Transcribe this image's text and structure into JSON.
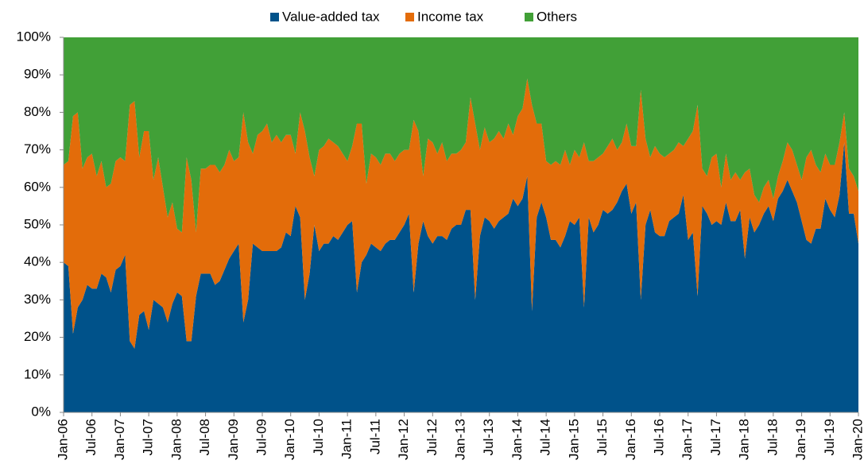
{
  "chart_data": {
    "type": "stacked_area",
    "categories": [
      "Jan-06",
      null,
      null,
      null,
      null,
      null,
      "Jul-06",
      null,
      null,
      null,
      null,
      null,
      "Jan-07",
      null,
      null,
      null,
      null,
      null,
      "Jul-07",
      null,
      null,
      null,
      null,
      null,
      "Jan-08",
      null,
      null,
      null,
      null,
      null,
      "Jul-08",
      null,
      null,
      null,
      null,
      null,
      "Jan-09",
      null,
      null,
      null,
      null,
      null,
      "Jul-09",
      null,
      null,
      null,
      null,
      null,
      "Jan-10",
      null,
      null,
      null,
      null,
      null,
      "Jul-10",
      null,
      null,
      null,
      null,
      null,
      "Jan-11",
      null,
      null,
      null,
      null,
      null,
      "Jul-11",
      null,
      null,
      null,
      null,
      null,
      "Jan-12",
      null,
      null,
      null,
      null,
      null,
      "Jul-12",
      null,
      null,
      null,
      null,
      null,
      "Jan-13",
      null,
      null,
      null,
      null,
      null,
      "Jul-13",
      null,
      null,
      null,
      null,
      null,
      "Jan-14",
      null,
      null,
      null,
      null,
      null,
      "Jul-14",
      null,
      null,
      null,
      null,
      null,
      "Jan-15",
      null,
      null,
      null,
      null,
      null,
      "Jul-15",
      null,
      null,
      null,
      null,
      null,
      "Jan-16",
      null,
      null,
      null,
      null,
      null,
      "Jul-16",
      null,
      null,
      null,
      null,
      null,
      "Jan-17",
      null,
      null,
      null,
      null,
      null,
      "Jul-17",
      null,
      null,
      null,
      null,
      null,
      "Jan-18",
      null,
      null,
      null,
      null,
      null,
      "Jul-18",
      null,
      null,
      null,
      null,
      null,
      "Jan-19",
      null,
      null,
      null,
      null,
      null,
      "Jul-19",
      null,
      null,
      null,
      null,
      null,
      "Jan-20"
    ],
    "series": [
      {
        "name": "Value-added tax",
        "color": "#00528a",
        "values": [
          40,
          39,
          21,
          28,
          30,
          34,
          33,
          33,
          37,
          36,
          32,
          38,
          39,
          42,
          19,
          17,
          26,
          27,
          22,
          30,
          29,
          28,
          24,
          29,
          32,
          31,
          19,
          19,
          31,
          37,
          37,
          37,
          34,
          35,
          38,
          41,
          43,
          45,
          24,
          30,
          45,
          44,
          43,
          43,
          43,
          43,
          44,
          48,
          47,
          55,
          52,
          30,
          37,
          50,
          43,
          45,
          45,
          47,
          46,
          48,
          50,
          51,
          32,
          40,
          42,
          45,
          44,
          43,
          45,
          46,
          46,
          48,
          50,
          53,
          32,
          45,
          51,
          47,
          45,
          47,
          47,
          46,
          49,
          50,
          50,
          54,
          54,
          30,
          47,
          52,
          51,
          49,
          51,
          52,
          53,
          57,
          55,
          57,
          63,
          27,
          52,
          56,
          52,
          46,
          46,
          44,
          47,
          51,
          50,
          52,
          28,
          52,
          48,
          50,
          54,
          53,
          54,
          56,
          59,
          61,
          53,
          56,
          30,
          50,
          54,
          48,
          47,
          47,
          51,
          52,
          53,
          58,
          46,
          48,
          31,
          55,
          53,
          50,
          51,
          50,
          56,
          51,
          51,
          54,
          41,
          52,
          48,
          50,
          53,
          55,
          51,
          57,
          59,
          62,
          59,
          56,
          51,
          46,
          45,
          49,
          49,
          57,
          54,
          52,
          58,
          72,
          53,
          53,
          45
        ]
      },
      {
        "name": "Income tax",
        "color": "#e36c0a",
        "values": [
          26,
          28,
          58,
          52,
          35,
          34,
          36,
          30,
          30,
          24,
          29,
          29,
          29,
          25,
          63,
          66,
          42,
          48,
          53,
          32,
          39,
          32,
          28,
          27,
          17,
          17,
          49,
          43,
          17,
          28,
          28,
          29,
          32,
          29,
          28,
          29,
          24,
          23,
          56,
          42,
          24,
          30,
          32,
          34,
          29,
          31,
          28,
          26,
          27,
          14,
          28,
          45,
          31,
          13,
          27,
          26,
          28,
          25,
          25,
          21,
          17,
          20,
          45,
          37,
          19,
          24,
          24,
          23,
          24,
          23,
          21,
          21,
          20,
          17,
          46,
          30,
          12,
          26,
          27,
          22,
          25,
          21,
          20,
          19,
          20,
          18,
          30,
          47,
          23,
          24,
          21,
          24,
          24,
          21,
          24,
          17,
          24,
          24,
          26,
          55,
          25,
          21,
          15,
          20,
          21,
          22,
          23,
          15,
          20,
          16,
          44,
          15,
          19,
          18,
          15,
          18,
          19,
          14,
          13,
          16,
          18,
          15,
          56,
          23,
          14,
          23,
          22,
          21,
          18,
          18,
          19,
          13,
          27,
          27,
          51,
          10,
          10,
          18,
          18,
          10,
          13,
          11,
          13,
          8,
          23,
          13,
          10,
          6,
          7,
          7,
          6,
          6,
          8,
          10,
          11,
          10,
          11,
          22,
          25,
          17,
          15,
          12,
          12,
          14,
          14,
          8,
          12,
          10,
          14
        ]
      },
      {
        "name": "Others",
        "color": "#41a037",
        "values": [
          34,
          33,
          21,
          20,
          35,
          32,
          31,
          37,
          33,
          40,
          39,
          33,
          32,
          33,
          18,
          17,
          32,
          25,
          25,
          38,
          32,
          40,
          48,
          44,
          51,
          52,
          32,
          38,
          52,
          35,
          35,
          34,
          34,
          36,
          34,
          30,
          33,
          32,
          20,
          28,
          31,
          26,
          25,
          23,
          28,
          26,
          28,
          26,
          26,
          31,
          20,
          25,
          32,
          37,
          30,
          29,
          27,
          28,
          29,
          31,
          33,
          29,
          23,
          23,
          39,
          31,
          32,
          34,
          31,
          31,
          33,
          31,
          30,
          30,
          22,
          25,
          37,
          27,
          28,
          31,
          28,
          33,
          31,
          31,
          30,
          28,
          16,
          23,
          30,
          24,
          28,
          27,
          25,
          27,
          23,
          26,
          21,
          19,
          11,
          18,
          23,
          23,
          33,
          34,
          33,
          34,
          30,
          34,
          30,
          32,
          28,
          33,
          33,
          32,
          31,
          29,
          27,
          30,
          28,
          23,
          29,
          29,
          14,
          27,
          32,
          29,
          31,
          32,
          31,
          30,
          28,
          29,
          27,
          25,
          18,
          35,
          37,
          32,
          31,
          40,
          31,
          38,
          36,
          38,
          36,
          35,
          42,
          44,
          40,
          38,
          43,
          37,
          33,
          28,
          30,
          34,
          38,
          32,
          30,
          34,
          36,
          31,
          34,
          34,
          28,
          20,
          35,
          37,
          41
        ]
      }
    ],
    "ylim": [
      0,
      100
    ],
    "yticks": [
      {
        "value": 0,
        "label": "0%"
      },
      {
        "value": 10,
        "label": "10%"
      },
      {
        "value": 20,
        "label": "20%"
      },
      {
        "value": 30,
        "label": "30%"
      },
      {
        "value": 40,
        "label": "40%"
      },
      {
        "value": 50,
        "label": "50%"
      },
      {
        "value": 60,
        "label": "60%"
      },
      {
        "value": 70,
        "label": "70%"
      },
      {
        "value": 80,
        "label": "80%"
      },
      {
        "value": 90,
        "label": "90%"
      },
      {
        "value": 100,
        "label": "100%"
      }
    ],
    "legend": "top"
  }
}
